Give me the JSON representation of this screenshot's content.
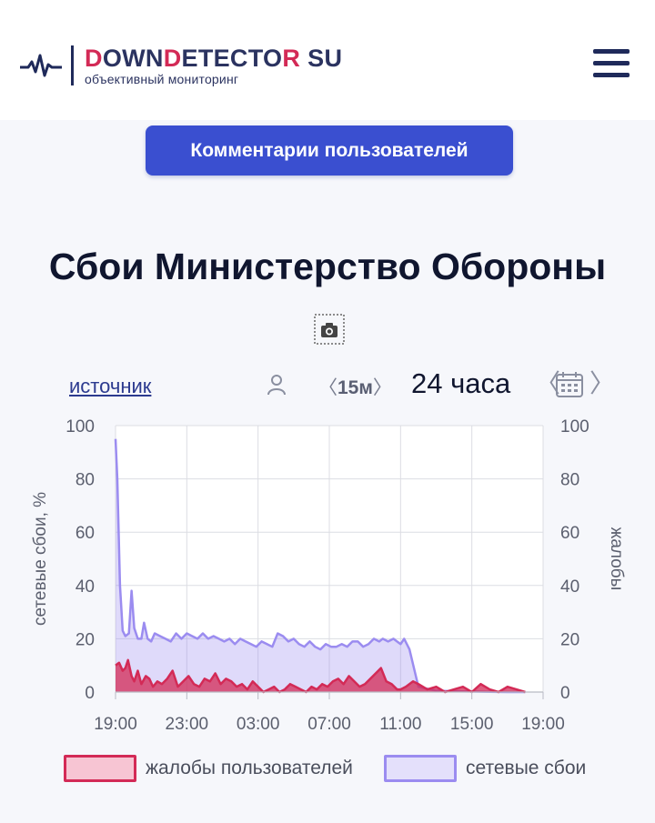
{
  "header": {
    "logo_part1": "D",
    "logo_part2": "OWN",
    "logo_part3": "D",
    "logo_part4": "ETECTO",
    "logo_part5": "R",
    "logo_part6": "SU",
    "logo_subtitle": "объективный мониторинг",
    "logo_icon": "pulse-icon",
    "menu_icon": "hamburger-icon"
  },
  "comments_button": "Комментарии пользователей",
  "page_title": "Сбои Министерство Обороны",
  "screenshot_icon": "camera-icon",
  "controls": {
    "source_link": "источник",
    "user_icon": "user-icon",
    "interval_left": "〈",
    "interval": "15м",
    "interval_right": "〉",
    "range": "24 часа",
    "prev": "〈",
    "next": "〉",
    "calendar_icon": "calendar-icon"
  },
  "colors": {
    "accent": "#3a4fd0",
    "complaints": "#d32a56",
    "outages": "#9b8cf0",
    "brand": "#2b3360"
  },
  "chart_data": {
    "type": "area",
    "x_ticks": [
      "19:00",
      "23:00",
      "03:00",
      "07:00",
      "11:00",
      "15:00",
      "19:00"
    ],
    "left_axis": {
      "label": "сетевые сбои, %",
      "ticks": [
        0,
        20,
        40,
        60,
        80,
        100
      ],
      "ylim": [
        0,
        100
      ]
    },
    "right_axis": {
      "label": "жалобы",
      "ticks": [
        0,
        20,
        40,
        60,
        80,
        100
      ],
      "ylim": [
        0,
        100
      ]
    },
    "xlim_hours": [
      0,
      24
    ],
    "grid": true,
    "legend_position": "bottom",
    "series": [
      {
        "name": "сетевые сбои",
        "color": "#9b8cf0",
        "x": [
          0,
          0.1,
          0.25,
          0.4,
          0.55,
          0.75,
          0.9,
          1.05,
          1.25,
          1.45,
          1.6,
          1.8,
          2.0,
          2.2,
          2.5,
          2.8,
          3.1,
          3.4,
          3.7,
          4.0,
          4.3,
          4.6,
          4.9,
          5.2,
          5.5,
          5.8,
          6.1,
          6.4,
          6.7,
          7.0,
          7.3,
          7.6,
          7.9,
          8.2,
          8.5,
          8.8,
          9.1,
          9.4,
          9.7,
          10.0,
          10.3,
          10.6,
          10.9,
          11.2,
          11.5,
          11.8,
          12.1,
          12.4,
          12.7,
          13.0,
          13.3,
          13.6,
          13.9,
          14.2,
          14.5,
          14.8,
          15.0,
          15.3,
          15.6,
          15.8,
          16.0,
          16.2,
          16.5,
          17,
          18,
          19,
          20,
          21,
          22,
          23
        ],
        "values": [
          95,
          80,
          40,
          23,
          21,
          22,
          38,
          24,
          20,
          20,
          26,
          20,
          19,
          22,
          21,
          20,
          19,
          22,
          20,
          22,
          21,
          20,
          22,
          20,
          21,
          20,
          19,
          20,
          18,
          20,
          19,
          18,
          17,
          19,
          18,
          17,
          22,
          21,
          19,
          20,
          18,
          17,
          19,
          17,
          16,
          18,
          17,
          17,
          18,
          17,
          19,
          19,
          17,
          18,
          20,
          19,
          20,
          19,
          20,
          19,
          18,
          20,
          16,
          2,
          0.5,
          0.3,
          0.2,
          0.1,
          0,
          0
        ]
      },
      {
        "name": "жалобы пользователей",
        "color": "#d32a56",
        "x": [
          0,
          0.2,
          0.4,
          0.55,
          0.7,
          0.9,
          1.05,
          1.25,
          1.45,
          1.7,
          1.9,
          2.1,
          2.35,
          2.6,
          2.9,
          3.2,
          3.5,
          3.8,
          4.1,
          4.4,
          4.7,
          5.0,
          5.3,
          5.6,
          5.9,
          6.2,
          6.5,
          6.8,
          7.1,
          7.4,
          7.7,
          8.0,
          8.3,
          8.6,
          8.9,
          9.2,
          9.5,
          9.8,
          10.1,
          10.4,
          10.7,
          11.0,
          11.3,
          11.6,
          11.9,
          12.2,
          12.5,
          12.8,
          13.1,
          13.4,
          13.7,
          14.0,
          14.3,
          14.6,
          14.9,
          15.2,
          15.5,
          15.8,
          16.0,
          16.3,
          16.7,
          17.0,
          17.5,
          18.0,
          18.5,
          19.0,
          19.5,
          20.0,
          20.5,
          21.0,
          21.5,
          22.0,
          22.5,
          23.0
        ],
        "values": [
          10,
          11,
          8,
          9,
          12,
          6,
          4,
          8,
          3,
          6,
          5,
          2,
          4,
          3,
          5,
          8,
          2,
          4,
          6,
          3,
          2,
          5,
          4,
          7,
          3,
          5,
          4,
          2,
          3,
          1,
          4,
          2,
          0,
          1,
          2,
          0,
          1,
          3,
          2,
          1,
          0,
          2,
          1,
          3,
          2,
          4,
          5,
          3,
          6,
          4,
          2,
          3,
          5,
          7,
          9,
          4,
          3,
          1,
          1,
          2,
          4,
          3,
          1,
          2,
          0,
          1,
          2,
          0,
          3,
          1,
          0,
          2,
          1,
          0
        ]
      }
    ]
  },
  "legend": {
    "complaints": "жалобы пользователей",
    "outages": "сетевые сбои"
  }
}
